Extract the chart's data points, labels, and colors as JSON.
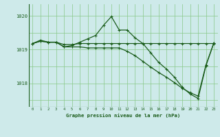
{
  "background_color": "#ceeaea",
  "grid_color": "#88c888",
  "line_color": "#1a5c1a",
  "title": "Graphe pression niveau de la mer (hPa)",
  "ylim": [
    1017.3,
    1020.35
  ],
  "yticks": [
    1018,
    1019,
    1020
  ],
  "xlim": [
    -0.5,
    23.5
  ],
  "line1_x": [
    0,
    1,
    2,
    3,
    4,
    5,
    6,
    7,
    8,
    9,
    10,
    11,
    12,
    13,
    14,
    15,
    16,
    17,
    18,
    19,
    20,
    21,
    22,
    23
  ],
  "line1_y": [
    1019.18,
    1019.25,
    1019.22,
    1019.22,
    1019.15,
    1019.15,
    1019.18,
    1019.18,
    1019.18,
    1019.18,
    1019.18,
    1019.18,
    1019.18,
    1019.18,
    1019.18,
    1019.18,
    1019.18,
    1019.18,
    1019.18,
    1019.18,
    1019.18,
    1019.18,
    1019.18,
    1019.18
  ],
  "line2_x": [
    0,
    1,
    2,
    3,
    4,
    5,
    6,
    7,
    8,
    9,
    10,
    11,
    12,
    13,
    14,
    15,
    16,
    17,
    18,
    19,
    20,
    21,
    22,
    23
  ],
  "line2_y": [
    1019.18,
    1019.28,
    1019.22,
    1019.22,
    1019.08,
    1019.12,
    1019.22,
    1019.32,
    1019.42,
    1019.72,
    1019.98,
    1019.58,
    1019.58,
    1019.35,
    1019.18,
    1018.9,
    1018.62,
    1018.42,
    1018.18,
    1017.88,
    1017.68,
    1017.55,
    1018.52,
    1019.2
  ],
  "line3_x": [
    0,
    1,
    2,
    3,
    4,
    5,
    6,
    7,
    8,
    9,
    10,
    11,
    12,
    13,
    14,
    15,
    16,
    17,
    18,
    19,
    20,
    21,
    22,
    23
  ],
  "line3_y": [
    1019.18,
    1019.25,
    1019.22,
    1019.22,
    1019.08,
    1019.08,
    1019.08,
    1019.05,
    1019.05,
    1019.05,
    1019.05,
    1019.05,
    1018.95,
    1018.82,
    1018.65,
    1018.48,
    1018.32,
    1018.18,
    1018.02,
    1017.85,
    1017.72,
    1017.62,
    1018.55,
    1019.2
  ]
}
